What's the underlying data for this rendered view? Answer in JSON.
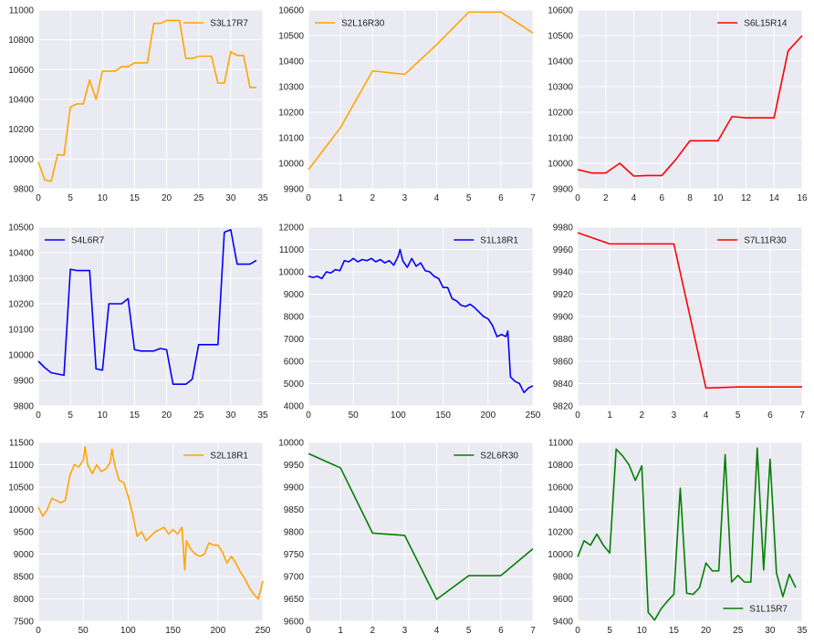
{
  "chart_data": [
    {
      "type": "line",
      "series": [
        {
          "name": "S3L17R7",
          "color": "#FFA500",
          "x": [
            0,
            1,
            2,
            3,
            4,
            5,
            6,
            7,
            8,
            9,
            10,
            11,
            12,
            13,
            14,
            15,
            16,
            17,
            18,
            19,
            20,
            21,
            22,
            23,
            24,
            25,
            26,
            27,
            28,
            29,
            30,
            31,
            32,
            33,
            34
          ],
          "y": [
            9980,
            9860,
            9850,
            10030,
            10025,
            10350,
            10370,
            10370,
            10530,
            10400,
            10590,
            10590,
            10590,
            10620,
            10620,
            10645,
            10645,
            10645,
            10910,
            10910,
            10930,
            10930,
            10930,
            10675,
            10675,
            10690,
            10690,
            10690,
            10510,
            10510,
            10720,
            10695,
            10695,
            10480,
            10480
          ]
        }
      ],
      "xlim": [
        0,
        35
      ],
      "ylim": [
        9800,
        11000
      ],
      "xticks": [
        0,
        5,
        10,
        15,
        20,
        25,
        30,
        35
      ],
      "yticks": [
        9800,
        10000,
        10200,
        10400,
        10600,
        10800,
        11000
      ],
      "legend": "upper right",
      "grid": true
    },
    {
      "type": "line",
      "series": [
        {
          "name": "S2L16R30",
          "color": "#FFA500",
          "x": [
            0,
            1,
            2,
            3,
            4,
            5,
            6,
            7
          ],
          "y": [
            9975,
            10140,
            10362,
            10348,
            10465,
            10592,
            10592,
            10510
          ]
        }
      ],
      "xlim": [
        0,
        7
      ],
      "ylim": [
        9900,
        10600
      ],
      "xticks": [
        0,
        1,
        2,
        3,
        4,
        5,
        6,
        7
      ],
      "yticks": [
        9900,
        10000,
        10100,
        10200,
        10300,
        10400,
        10500,
        10600
      ],
      "legend": "upper left",
      "grid": true
    },
    {
      "type": "line",
      "series": [
        {
          "name": "S6L15R14",
          "color": "#FF0000",
          "x": [
            0,
            1,
            2,
            3,
            4,
            5,
            6,
            7,
            8,
            9,
            10,
            11,
            12,
            13,
            14,
            15,
            16
          ],
          "y": [
            9975,
            9962,
            9962,
            10000,
            9950,
            9952,
            9952,
            10015,
            10088,
            10088,
            10088,
            10183,
            10178,
            10178,
            10178,
            10440,
            10500
          ]
        }
      ],
      "xlim": [
        0,
        16
      ],
      "ylim": [
        9900,
        10600
      ],
      "xticks": [
        0,
        2,
        4,
        6,
        8,
        10,
        12,
        14,
        16
      ],
      "yticks": [
        9900,
        10000,
        10100,
        10200,
        10300,
        10400,
        10500,
        10600
      ],
      "legend": "upper right",
      "grid": true
    },
    {
      "type": "line",
      "series": [
        {
          "name": "S4L6R7",
          "color": "#0000FF",
          "x": [
            0,
            1,
            2,
            3,
            4,
            5,
            6,
            7,
            8,
            9,
            10,
            11,
            12,
            13,
            14,
            15,
            16,
            17,
            18,
            19,
            20,
            21,
            22,
            23,
            24,
            25,
            26,
            27,
            28,
            29,
            30,
            31,
            32,
            33,
            34
          ],
          "y": [
            9975,
            9950,
            9930,
            9925,
            9920,
            10335,
            10330,
            10330,
            10330,
            9945,
            9940,
            10200,
            10200,
            10200,
            10220,
            10020,
            10015,
            10015,
            10015,
            10025,
            10020,
            9885,
            9885,
            9885,
            9905,
            10040,
            10040,
            10040,
            10040,
            10480,
            10490,
            10355,
            10355,
            10355,
            10370
          ]
        }
      ],
      "xlim": [
        0,
        35
      ],
      "ylim": [
        9800,
        10500
      ],
      "xticks": [
        0,
        5,
        10,
        15,
        20,
        25,
        30,
        35
      ],
      "yticks": [
        9800,
        9900,
        10000,
        10100,
        10200,
        10300,
        10400,
        10500
      ],
      "legend": "upper left",
      "grid": true
    },
    {
      "type": "line",
      "series": [
        {
          "name": "S1L18R1",
          "color": "#0000FF",
          "x": [
            0,
            5,
            10,
            15,
            20,
            25,
            30,
            35,
            40,
            45,
            50,
            55,
            60,
            65,
            70,
            75,
            80,
            85,
            90,
            95,
            100,
            102,
            105,
            110,
            115,
            120,
            125,
            130,
            135,
            140,
            145,
            150,
            155,
            160,
            165,
            170,
            175,
            180,
            185,
            190,
            195,
            200,
            205,
            210,
            215,
            220,
            222,
            225,
            230,
            235,
            240,
            245,
            250
          ],
          "y": [
            9800,
            9750,
            9800,
            9700,
            10000,
            9950,
            10100,
            10050,
            10500,
            10450,
            10600,
            10450,
            10550,
            10500,
            10600,
            10450,
            10550,
            10400,
            10500,
            10300,
            10700,
            11000,
            10500,
            10200,
            10600,
            10250,
            10400,
            10050,
            10000,
            9800,
            9700,
            9300,
            9300,
            8800,
            8700,
            8500,
            8450,
            8550,
            8400,
            8200,
            8000,
            7900,
            7600,
            7100,
            7200,
            7100,
            7350,
            5300,
            5100,
            5000,
            4600,
            4800,
            4900
          ]
        }
      ],
      "xlim": [
        0,
        250
      ],
      "ylim": [
        4000,
        12000
      ],
      "xticks": [
        0,
        50,
        100,
        150,
        200,
        250
      ],
      "yticks": [
        4000,
        5000,
        6000,
        7000,
        8000,
        9000,
        10000,
        11000,
        12000
      ],
      "legend": "upper right",
      "grid": true
    },
    {
      "type": "line",
      "series": [
        {
          "name": "S7L11R30",
          "color": "#FF0000",
          "x": [
            0,
            1,
            2,
            3,
            4,
            5,
            6,
            7
          ],
          "y": [
            9975,
            9965,
            9965,
            9965,
            9836,
            9837,
            9837,
            9837
          ]
        }
      ],
      "xlim": [
        0,
        7
      ],
      "ylim": [
        9820,
        9980
      ],
      "xticks": [
        0,
        1,
        2,
        3,
        4,
        5,
        6,
        7
      ],
      "yticks": [
        9820,
        9840,
        9860,
        9880,
        9900,
        9920,
        9940,
        9960,
        9980
      ],
      "legend": "upper right",
      "grid": true
    },
    {
      "type": "line",
      "series": [
        {
          "name": "S2L18R1",
          "color": "#FFA500",
          "x": [
            0,
            5,
            10,
            15,
            20,
            25,
            30,
            35,
            40,
            45,
            50,
            52,
            55,
            60,
            65,
            70,
            75,
            80,
            82,
            85,
            90,
            95,
            100,
            105,
            110,
            115,
            120,
            125,
            130,
            135,
            140,
            145,
            150,
            155,
            160,
            163,
            165,
            170,
            175,
            180,
            185,
            190,
            195,
            200,
            205,
            210,
            215,
            220,
            225,
            230,
            235,
            240,
            245,
            250
          ],
          "y": [
            10050,
            9850,
            10000,
            10250,
            10200,
            10150,
            10200,
            10750,
            11000,
            10950,
            11100,
            11400,
            11000,
            10800,
            11000,
            10850,
            10900,
            11050,
            11350,
            11000,
            10650,
            10600,
            10300,
            9900,
            9400,
            9500,
            9300,
            9400,
            9500,
            9550,
            9600,
            9450,
            9550,
            9450,
            9600,
            8650,
            9300,
            9100,
            9000,
            8950,
            9000,
            9250,
            9200,
            9200,
            9050,
            8800,
            8950,
            8800,
            8600,
            8450,
            8250,
            8100,
            8000,
            8400
          ]
        }
      ],
      "xlim": [
        0,
        250
      ],
      "ylim": [
        7500,
        11500
      ],
      "xticks": [
        0,
        50,
        100,
        150,
        200,
        250
      ],
      "yticks": [
        7500,
        8000,
        8500,
        9000,
        9500,
        10000,
        10500,
        11000,
        11500
      ],
      "legend": "upper right",
      "grid": true
    },
    {
      "type": "line",
      "series": [
        {
          "name": "S2L6R30",
          "color": "#008000",
          "x": [
            0,
            1,
            2,
            3,
            4,
            5,
            6,
            7
          ],
          "y": [
            9975,
            9943,
            9797,
            9792,
            9649,
            9702,
            9702,
            9762
          ]
        }
      ],
      "xlim": [
        0,
        7
      ],
      "ylim": [
        9600,
        10000
      ],
      "xticks": [
        0,
        1,
        2,
        3,
        4,
        5,
        6,
        7
      ],
      "yticks": [
        9600,
        9650,
        9700,
        9750,
        9800,
        9850,
        9900,
        9950,
        10000
      ],
      "legend": "upper right",
      "grid": true
    },
    {
      "type": "line",
      "series": [
        {
          "name": "S1L15R7",
          "color": "#008000",
          "x": [
            0,
            1,
            2,
            3,
            4,
            5,
            6,
            7,
            8,
            9,
            10,
            11,
            12,
            13,
            14,
            15,
            16,
            17,
            18,
            19,
            20,
            21,
            22,
            23,
            24,
            25,
            26,
            27,
            28,
            29,
            30,
            31,
            32,
            33,
            34
          ],
          "y": [
            9975,
            10120,
            10080,
            10180,
            10080,
            10010,
            10940,
            10880,
            10800,
            10660,
            10790,
            9480,
            9410,
            9510,
            9580,
            9640,
            10590,
            9650,
            9640,
            9700,
            9920,
            9850,
            9850,
            10890,
            9750,
            9810,
            9750,
            9750,
            10950,
            9860,
            10850,
            9830,
            9620,
            9820,
            9700
          ]
        }
      ],
      "xlim": [
        0,
        35
      ],
      "ylim": [
        9400,
        11000
      ],
      "xticks": [
        0,
        5,
        10,
        15,
        20,
        25,
        30,
        35
      ],
      "yticks": [
        9400,
        9600,
        9800,
        10000,
        10200,
        10400,
        10600,
        10800,
        11000
      ],
      "legend": "lower right",
      "grid": true
    }
  ]
}
